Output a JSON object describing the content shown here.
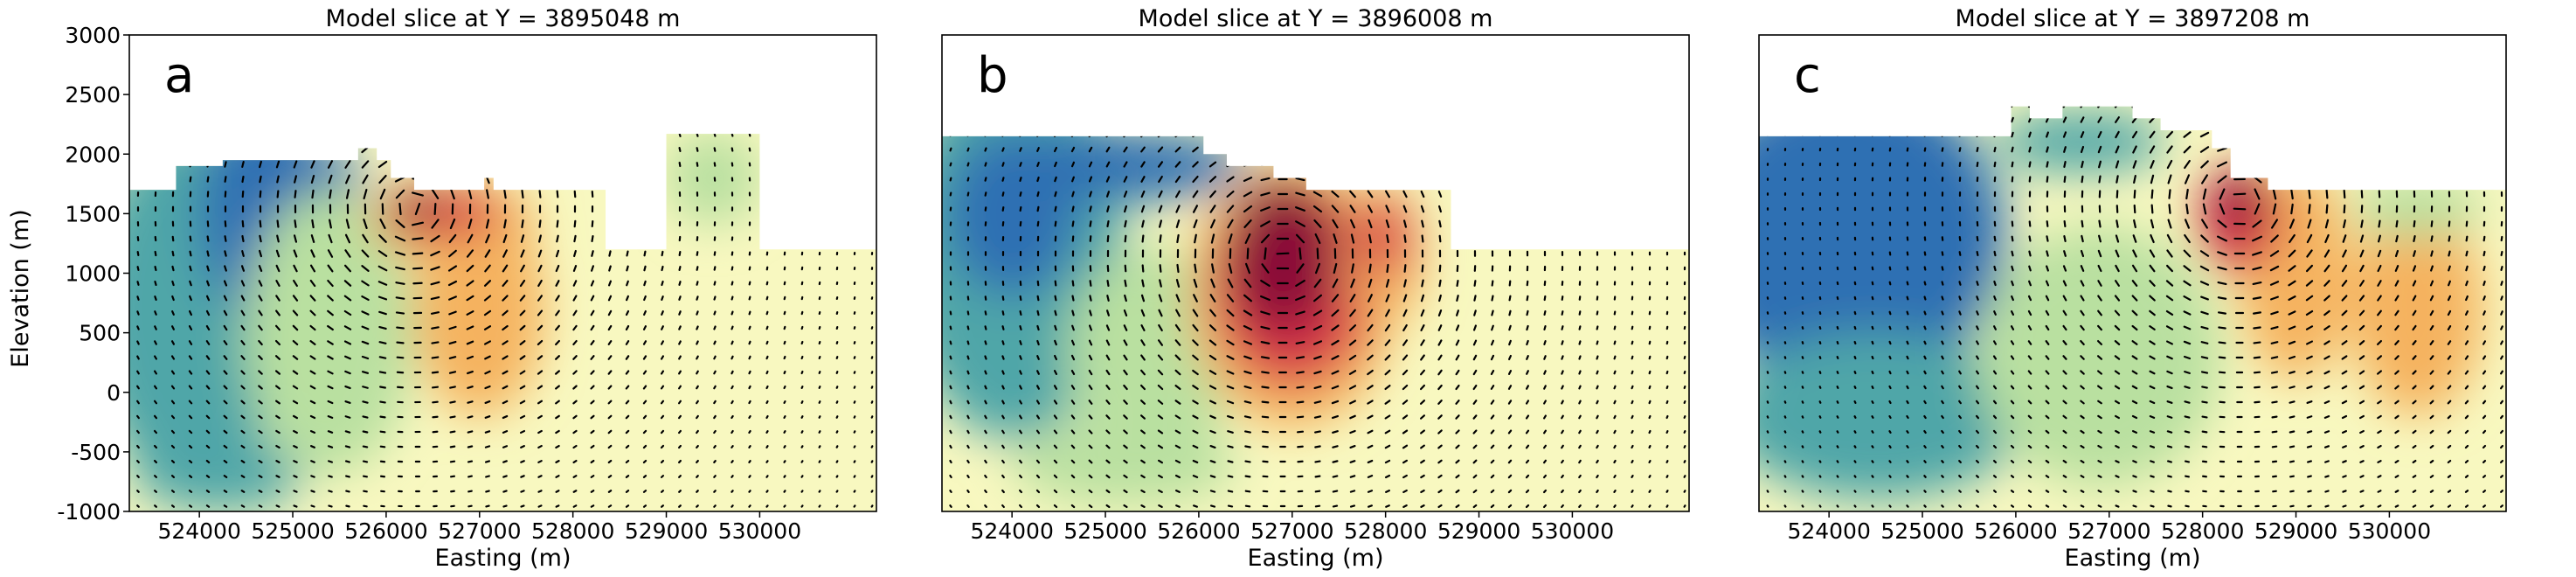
{
  "chart_data": {
    "type": "heatmap",
    "shared_ylabel": "Elevation (m)",
    "ylim": [
      -1000,
      3000
    ],
    "yticks": [
      3000,
      2500,
      2000,
      1500,
      1000,
      500,
      0,
      -500,
      -1000
    ],
    "xlim": [
      523250,
      531250
    ],
    "xticks": [
      524000,
      525000,
      526000,
      527000,
      528000,
      529000,
      530000
    ],
    "xlabel": "Easting (m)",
    "grid": false,
    "colors": {
      "low": "#2f6fb3",
      "mid_low": "#4fa6a8",
      "mid": "#b9e0a0",
      "neutral": "#f8f8c0",
      "mid_high": "#f5b25e",
      "high": "#d7354a",
      "max": "#8a0d38"
    },
    "panels": [
      {
        "letter": "a",
        "title": "Model slice at Y = 3895048 m",
        "topography": [
          [
            523250,
            1700
          ],
          [
            523750,
            1700
          ],
          [
            523750,
            1900
          ],
          [
            524250,
            1900
          ],
          [
            524250,
            1950
          ],
          [
            525700,
            1950
          ],
          [
            525700,
            2050
          ],
          [
            525900,
            2050
          ],
          [
            525900,
            1950
          ],
          [
            526050,
            1950
          ],
          [
            526050,
            1800
          ],
          [
            526300,
            1800
          ],
          [
            526300,
            1700
          ],
          [
            527050,
            1700
          ],
          [
            527050,
            1800
          ],
          [
            527150,
            1800
          ],
          [
            527150,
            1700
          ],
          [
            528350,
            1700
          ],
          [
            528350,
            1200
          ],
          [
            529000,
            1200
          ],
          [
            529000,
            2170
          ],
          [
            530000,
            2170
          ],
          [
            530000,
            1200
          ],
          [
            531250,
            1200
          ]
        ],
        "anomalies": [
          {
            "x": 523900,
            "y": 700,
            "rx": 1100,
            "ry": 1500,
            "level": "mid_low"
          },
          {
            "x": 524300,
            "y": 1650,
            "rx": 800,
            "ry": 350,
            "level": "mid_low"
          },
          {
            "x": 524700,
            "y": 1500,
            "rx": 700,
            "ry": 900,
            "level": "low"
          },
          {
            "x": 525300,
            "y": 1800,
            "rx": 450,
            "ry": 250,
            "level": "low"
          },
          {
            "x": 525400,
            "y": 500,
            "rx": 900,
            "ry": 1200,
            "level": "mid"
          },
          {
            "x": 527000,
            "y": 700,
            "rx": 700,
            "ry": 900,
            "level": "mid_high"
          },
          {
            "x": 526700,
            "y": 1450,
            "rx": 900,
            "ry": 350,
            "level": "mid_high"
          },
          {
            "x": 526600,
            "y": 1500,
            "rx": 650,
            "ry": 200,
            "level": "high"
          },
          {
            "x": 526300,
            "y": 1550,
            "rx": 300,
            "ry": 150,
            "level": "max"
          },
          {
            "x": 524200,
            "y": -700,
            "rx": 900,
            "ry": 300,
            "level": "mid_low"
          },
          {
            "x": 529500,
            "y": 1800,
            "rx": 500,
            "ry": 400,
            "level": "mid"
          }
        ]
      },
      {
        "letter": "b",
        "title": "Model slice at Y = 3896008 m",
        "topography": [
          [
            523250,
            2150
          ],
          [
            526050,
            2150
          ],
          [
            526050,
            2000
          ],
          [
            526300,
            2000
          ],
          [
            526300,
            1900
          ],
          [
            526800,
            1900
          ],
          [
            526800,
            1800
          ],
          [
            527150,
            1800
          ],
          [
            527150,
            1700
          ],
          [
            528700,
            1700
          ],
          [
            528700,
            1200
          ],
          [
            531250,
            1200
          ]
        ],
        "anomalies": [
          {
            "x": 524000,
            "y": 1200,
            "rx": 1200,
            "ry": 1600,
            "level": "mid_low"
          },
          {
            "x": 525000,
            "y": 1900,
            "rx": 1500,
            "ry": 300,
            "level": "low"
          },
          {
            "x": 524000,
            "y": 1500,
            "rx": 700,
            "ry": 700,
            "level": "low"
          },
          {
            "x": 525200,
            "y": -600,
            "rx": 1200,
            "ry": 350,
            "level": "mid"
          },
          {
            "x": 525500,
            "y": 300,
            "rx": 900,
            "ry": 900,
            "level": "mid"
          },
          {
            "x": 527000,
            "y": 800,
            "rx": 1100,
            "ry": 1100,
            "level": "mid_high"
          },
          {
            "x": 527000,
            "y": 900,
            "rx": 850,
            "ry": 850,
            "level": "high"
          },
          {
            "x": 526900,
            "y": 1150,
            "rx": 600,
            "ry": 650,
            "level": "max"
          },
          {
            "x": 528000,
            "y": 1150,
            "rx": 400,
            "ry": 600,
            "level": "mid_high"
          },
          {
            "x": 528000,
            "y": 1300,
            "rx": 250,
            "ry": 350,
            "level": "high"
          }
        ]
      },
      {
        "letter": "c",
        "title": "Model slice at Y = 3897208 m",
        "topography": [
          [
            523250,
            2150
          ],
          [
            525950,
            2150
          ],
          [
            525950,
            2400
          ],
          [
            526150,
            2400
          ],
          [
            526150,
            2300
          ],
          [
            526500,
            2300
          ],
          [
            526500,
            2400
          ],
          [
            527250,
            2400
          ],
          [
            527250,
            2300
          ],
          [
            527550,
            2300
          ],
          [
            527550,
            2200
          ],
          [
            528100,
            2200
          ],
          [
            528100,
            2050
          ],
          [
            528300,
            2050
          ],
          [
            528300,
            1800
          ],
          [
            528700,
            1800
          ],
          [
            528700,
            1700
          ],
          [
            531250,
            1700
          ]
        ],
        "anomalies": [
          {
            "x": 524200,
            "y": 1300,
            "rx": 1700,
            "ry": 1300,
            "level": "low"
          },
          {
            "x": 524500,
            "y": -200,
            "rx": 1600,
            "ry": 700,
            "level": "mid_low"
          },
          {
            "x": 526700,
            "y": 2100,
            "rx": 900,
            "ry": 250,
            "level": "mid_low"
          },
          {
            "x": 526900,
            "y": 300,
            "rx": 1300,
            "ry": 1100,
            "level": "mid"
          },
          {
            "x": 529000,
            "y": 1000,
            "rx": 600,
            "ry": 900,
            "level": "mid_high"
          },
          {
            "x": 530300,
            "y": 700,
            "rx": 700,
            "ry": 900,
            "level": "mid_high"
          },
          {
            "x": 528400,
            "y": 1450,
            "rx": 450,
            "ry": 450,
            "level": "high"
          },
          {
            "x": 528400,
            "y": 1600,
            "rx": 250,
            "ry": 250,
            "level": "max"
          },
          {
            "x": 530300,
            "y": 1550,
            "rx": 700,
            "ry": 250,
            "level": "mid"
          }
        ]
      }
    ]
  }
}
